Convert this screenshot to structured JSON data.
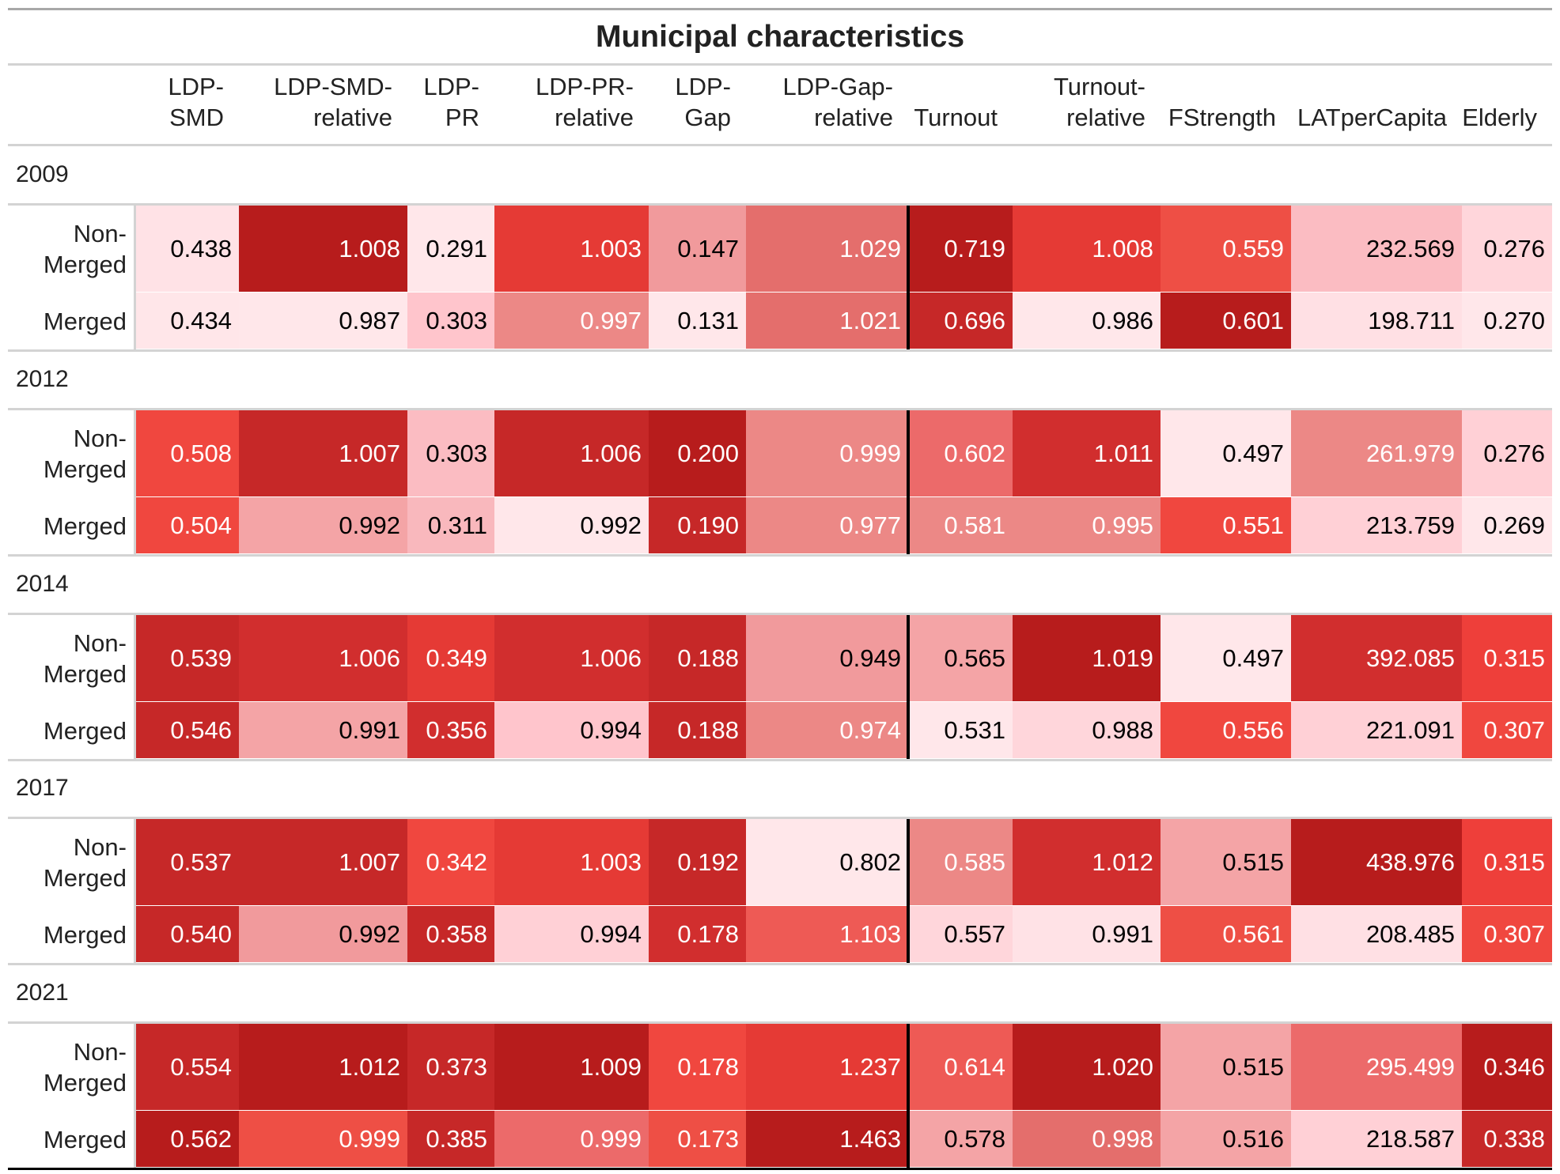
{
  "chart_data": {
    "type": "table",
    "title": "Municipal characteristics",
    "columns": [
      {
        "key": "LDP-SMD",
        "label": "LDP-\nSMD"
      },
      {
        "key": "LDP-SMD-relative",
        "label": "LDP-SMD-\nrelative"
      },
      {
        "key": "LDP-PR",
        "label": "LDP-\nPR"
      },
      {
        "key": "LDP-PR-relative",
        "label": "LDP-PR-\nrelative"
      },
      {
        "key": "LDP-Gap",
        "label": "LDP-\nGap"
      },
      {
        "key": "LDP-Gap-relative",
        "label": "LDP-Gap-\nrelative"
      },
      {
        "key": "Turnout",
        "label": "Turnout"
      },
      {
        "key": "Turnout-relative",
        "label": "Turnout-\nrelative"
      },
      {
        "key": "FStrength",
        "label": "FStrength"
      },
      {
        "key": "LATperCapita",
        "label": "LATperCapita"
      },
      {
        "key": "Elderly",
        "label": "Elderly"
      }
    ],
    "groups": [
      {
        "year": "2009",
        "rows": [
          {
            "label": "Non-\nMerged",
            "values": [
              "0.438",
              "1.008",
              "0.291",
              "1.003",
              "0.147",
              "1.029",
              "0.719",
              "1.008",
              "0.559",
              "232.569",
              "0.276"
            ]
          },
          {
            "label": "Merged",
            "values": [
              "0.434",
              "0.987",
              "0.303",
              "0.997",
              "0.131",
              "1.021",
              "0.696",
              "0.986",
              "0.601",
              "198.711",
              "0.270"
            ]
          }
        ]
      },
      {
        "year": "2012",
        "rows": [
          {
            "label": "Non-\nMerged",
            "values": [
              "0.508",
              "1.007",
              "0.303",
              "1.006",
              "0.200",
              "0.999",
              "0.602",
              "1.011",
              "0.497",
              "261.979",
              "0.276"
            ]
          },
          {
            "label": "Merged",
            "values": [
              "0.504",
              "0.992",
              "0.311",
              "0.992",
              "0.190",
              "0.977",
              "0.581",
              "0.995",
              "0.551",
              "213.759",
              "0.269"
            ]
          }
        ]
      },
      {
        "year": "2014",
        "rows": [
          {
            "label": "Non-\nMerged",
            "values": [
              "0.539",
              "1.006",
              "0.349",
              "1.006",
              "0.188",
              "0.949",
              "0.565",
              "1.019",
              "0.497",
              "392.085",
              "0.315"
            ]
          },
          {
            "label": "Merged",
            "values": [
              "0.546",
              "0.991",
              "0.356",
              "0.994",
              "0.188",
              "0.974",
              "0.531",
              "0.988",
              "0.556",
              "221.091",
              "0.307"
            ]
          }
        ]
      },
      {
        "year": "2017",
        "rows": [
          {
            "label": "Non-\nMerged",
            "values": [
              "0.537",
              "1.007",
              "0.342",
              "1.003",
              "0.192",
              "0.802",
              "0.585",
              "1.012",
              "0.515",
              "438.976",
              "0.315"
            ]
          },
          {
            "label": "Merged",
            "values": [
              "0.540",
              "0.992",
              "0.358",
              "0.994",
              "0.178",
              "1.103",
              "0.557",
              "0.991",
              "0.561",
              "208.485",
              "0.307"
            ]
          }
        ]
      },
      {
        "year": "2021",
        "rows": [
          {
            "label": "Non-\nMerged",
            "values": [
              "0.554",
              "1.012",
              "0.373",
              "1.009",
              "0.178",
              "1.237",
              "0.614",
              "1.020",
              "0.515",
              "295.499",
              "0.346"
            ]
          },
          {
            "label": "Merged",
            "values": [
              "0.562",
              "0.999",
              "0.385",
              "0.999",
              "0.173",
              "1.463",
              "0.578",
              "0.998",
              "0.516",
              "218.587",
              "0.338"
            ]
          }
        ]
      }
    ],
    "colors": {
      "groupBorder": "#d3d3d3",
      "sepLine": "#000000",
      "palette": [
        "#ffe7ea",
        "#ffd0d6",
        "#fbbcc2",
        "#f4a4a6",
        "#ec8886",
        "#e46e6c",
        "#ee5a55",
        "#f0473f",
        "#e53a35",
        "#d12e2e",
        "#b71c1c"
      ],
      "cellColors": [
        [
          [
            "#ffe2e6",
            "#b71c1c",
            "#ffe7ea",
            "#e53a35",
            "#f19a9c",
            "#e46e6c",
            "#b71c1c",
            "#e53a35",
            "#ee4f45",
            "#fbbcc2",
            "#ffd6db"
          ],
          [
            "#ffe6e9",
            "#ffe7ea",
            "#ffc5cc",
            "#ec8886",
            "#ffe7ea",
            "#e46e6c",
            "#c62828",
            "#ffe7ea",
            "#b71c1c",
            "#ffe0e4",
            "#ffe7ea"
          ]
        ],
        [
          [
            "#f0473f",
            "#c62828",
            "#fbbcc2",
            "#c62828",
            "#b71c1c",
            "#ec8886",
            "#ec6a6a",
            "#d12e2e",
            "#ffe7ea",
            "#ec8886",
            "#ffd0d6"
          ],
          [
            "#f0473f",
            "#f4a4a6",
            "#f9b8bd",
            "#ffe7ea",
            "#c62828",
            "#ec8886",
            "#ec8886",
            "#ec8886",
            "#f0473f",
            "#ffd0d6",
            "#ffe7ea"
          ]
        ],
        [
          [
            "#c62828",
            "#d12e2e",
            "#e53a35",
            "#d12e2e",
            "#c62828",
            "#f19a9c",
            "#f4a4a6",
            "#b71c1c",
            "#ffe7ea",
            "#d12e2e",
            "#ee3f3a"
          ],
          [
            "#c62828",
            "#f4a4a6",
            "#d12e2e",
            "#ffc5cc",
            "#c62828",
            "#ec8886",
            "#ffe7ea",
            "#ffd6db",
            "#f0473f",
            "#ffd0d6",
            "#f0473f"
          ]
        ],
        [
          [
            "#c62828",
            "#c62828",
            "#f0473f",
            "#e53a35",
            "#c62828",
            "#ffe7ea",
            "#ec8886",
            "#d12e2e",
            "#f4a4a6",
            "#b71c1c",
            "#ee3f3a"
          ],
          [
            "#c62828",
            "#f19a9c",
            "#c62828",
            "#ffd0d6",
            "#d12e2e",
            "#ee5a55",
            "#ffd6db",
            "#ffe2e6",
            "#ee4f45",
            "#ffe0e4",
            "#f0473f"
          ]
        ],
        [
          [
            "#c62828",
            "#b71c1c",
            "#c62828",
            "#b71c1c",
            "#f0473f",
            "#e53a35",
            "#ee5a55",
            "#b71c1c",
            "#f4a4a6",
            "#ec6a6a",
            "#b71c1c"
          ],
          [
            "#b71c1c",
            "#ee4f45",
            "#c62828",
            "#ec6a6a",
            "#ee4f45",
            "#b71c1c",
            "#f4a4a6",
            "#e46e6c",
            "#f4a4a6",
            "#ffd0d6",
            "#c62828"
          ]
        ]
      ]
    }
  }
}
